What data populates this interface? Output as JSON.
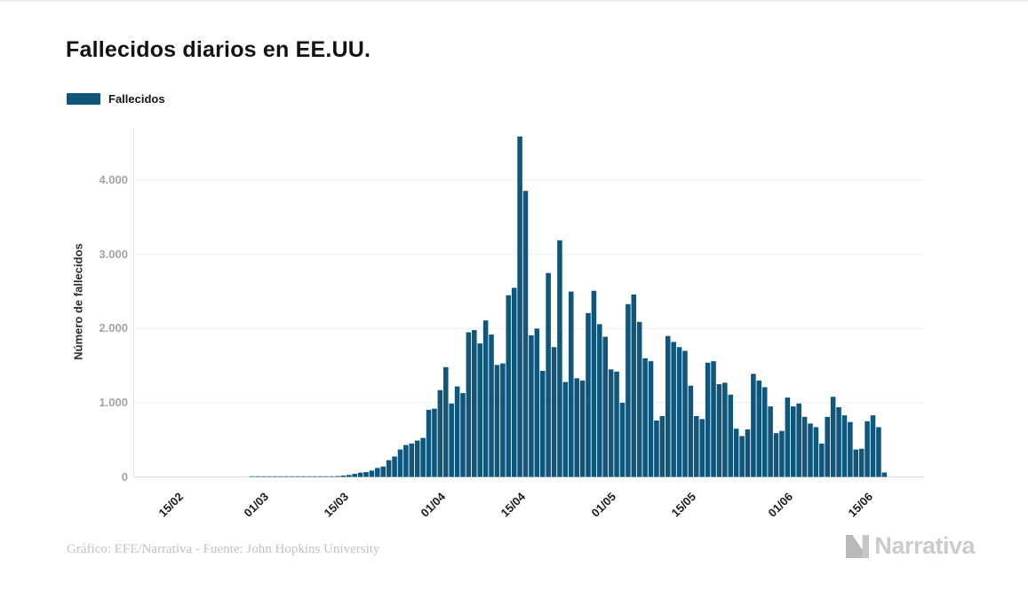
{
  "page": {
    "title": "Fallecidos diarios en EE.UU."
  },
  "legend": {
    "label": "Fallecidos",
    "swatch_color": "#0E567C"
  },
  "footer": {
    "credit": "Gráfico: EFE/Narrativa - Fuente: John Hopkins University",
    "logo_text": "Narrativa"
  },
  "chart_data": {
    "type": "bar",
    "title": "Fallecidos diarios en EE.UU.",
    "series_name": "Fallecidos",
    "ylabel": "Número de fallecidos",
    "bar_color": "#0E567C",
    "grid": true,
    "legend_position": "top-left",
    "ylim": [
      0,
      4700
    ],
    "y_ticks": [
      "0",
      "1.000",
      "2.000",
      "3.000",
      "4.000"
    ],
    "y_tick_values": [
      0,
      1000,
      2000,
      3000,
      4000
    ],
    "x_tick_labels": [
      "15/02",
      "01/03",
      "15/03",
      "01/04",
      "15/04",
      "01/05",
      "15/05",
      "01/06",
      "15/06"
    ],
    "x_tick_indices": [
      0,
      15,
      29,
      46,
      60,
      76,
      90,
      107,
      121
    ],
    "x": [
      "15/02",
      "16/02",
      "17/02",
      "18/02",
      "19/02",
      "20/02",
      "21/02",
      "22/02",
      "23/02",
      "24/02",
      "25/02",
      "26/02",
      "27/02",
      "28/02",
      "29/02",
      "01/03",
      "02/03",
      "03/03",
      "04/03",
      "05/03",
      "06/03",
      "07/03",
      "08/03",
      "09/03",
      "10/03",
      "11/03",
      "12/03",
      "13/03",
      "14/03",
      "15/03",
      "16/03",
      "17/03",
      "18/03",
      "19/03",
      "20/03",
      "21/03",
      "22/03",
      "23/03",
      "24/03",
      "25/03",
      "26/03",
      "27/03",
      "28/03",
      "29/03",
      "30/03",
      "31/03",
      "01/04",
      "02/04",
      "03/04",
      "04/04",
      "05/04",
      "06/04",
      "07/04",
      "08/04",
      "09/04",
      "10/04",
      "11/04",
      "12/04",
      "13/04",
      "14/04",
      "15/04",
      "16/04",
      "17/04",
      "18/04",
      "19/04",
      "20/04",
      "21/04",
      "22/04",
      "23/04",
      "24/04",
      "25/04",
      "26/04",
      "27/04",
      "28/04",
      "29/04",
      "30/04",
      "01/05",
      "02/05",
      "03/05",
      "04/05",
      "05/05",
      "06/05",
      "07/05",
      "08/05",
      "09/05",
      "10/05",
      "11/05",
      "12/05",
      "13/05",
      "14/05",
      "15/05",
      "16/05",
      "17/05",
      "18/05",
      "19/05",
      "20/05",
      "21/05",
      "22/05",
      "23/05",
      "24/05",
      "25/05",
      "26/05",
      "27/05",
      "28/05",
      "29/05",
      "30/05",
      "31/05",
      "01/06",
      "02/06",
      "03/06",
      "04/06",
      "05/06",
      "06/06",
      "07/06",
      "08/06",
      "09/06",
      "10/06",
      "11/06",
      "12/06",
      "13/06",
      "14/06",
      "15/06",
      "16/06",
      "17/06",
      "18/06",
      "19/06"
    ],
    "values": [
      0,
      0,
      0,
      0,
      0,
      0,
      0,
      0,
      0,
      0,
      0,
      0,
      0,
      0,
      1,
      1,
      5,
      1,
      4,
      1,
      3,
      2,
      3,
      4,
      8,
      4,
      3,
      8,
      8,
      11,
      18,
      26,
      41,
      57,
      65,
      85,
      120,
      140,
      225,
      275,
      370,
      430,
      450,
      490,
      525,
      905,
      920,
      1170,
      1480,
      990,
      1220,
      1130,
      1950,
      1980,
      1800,
      2110,
      1920,
      1510,
      1530,
      2450,
      2550,
      4591,
      3857,
      1910,
      2000,
      1430,
      2750,
      1750,
      3190,
      1280,
      2500,
      1330,
      1300,
      2210,
      2510,
      2060,
      1890,
      1450,
      1420,
      1000,
      2330,
      2460,
      2090,
      1600,
      1560,
      760,
      820,
      1900,
      1820,
      1750,
      1700,
      1230,
      820,
      780,
      1540,
      1560,
      1250,
      1270,
      1110,
      650,
      550,
      640,
      1390,
      1300,
      1210,
      950,
      590,
      620,
      1070,
      950,
      990,
      810,
      720,
      670,
      450,
      810,
      1080,
      940,
      830,
      740,
      370,
      380,
      750,
      830,
      670,
      60
    ]
  }
}
